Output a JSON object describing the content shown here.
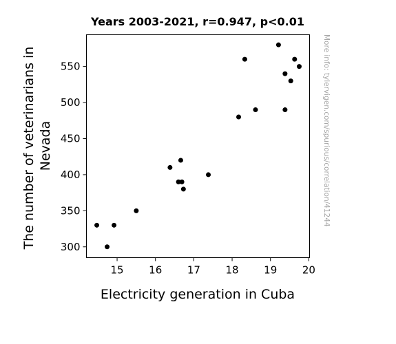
{
  "chart_data": {
    "type": "scatter",
    "title": "Years 2003-2021, r=0.947, p<0.01",
    "xlabel": "Electricity generation in Cuba",
    "ylabel_lines": [
      "The number of veterinarians in",
      "Nevada"
    ],
    "side_note": "More info: tylervigen.com/spurious/correlation/41244",
    "xlim": [
      14.2,
      20.02
    ],
    "ylim": [
      285,
      594
    ],
    "xticks": [
      15,
      16,
      17,
      18,
      19,
      20
    ],
    "yticks": [
      300,
      350,
      400,
      450,
      500,
      550
    ],
    "grid": false,
    "point_color": "#000000",
    "points": [
      {
        "x": 14.47,
        "y": 330
      },
      {
        "x": 14.74,
        "y": 300
      },
      {
        "x": 14.92,
        "y": 330
      },
      {
        "x": 15.5,
        "y": 350
      },
      {
        "x": 16.38,
        "y": 410
      },
      {
        "x": 16.6,
        "y": 390
      },
      {
        "x": 16.66,
        "y": 420
      },
      {
        "x": 16.69,
        "y": 390
      },
      {
        "x": 16.73,
        "y": 380
      },
      {
        "x": 17.38,
        "y": 400
      },
      {
        "x": 18.17,
        "y": 480
      },
      {
        "x": 18.33,
        "y": 560
      },
      {
        "x": 18.61,
        "y": 490
      },
      {
        "x": 19.21,
        "y": 580
      },
      {
        "x": 19.38,
        "y": 540
      },
      {
        "x": 19.38,
        "y": 490
      },
      {
        "x": 19.53,
        "y": 530
      },
      {
        "x": 19.63,
        "y": 560
      },
      {
        "x": 19.75,
        "y": 550
      }
    ]
  }
}
